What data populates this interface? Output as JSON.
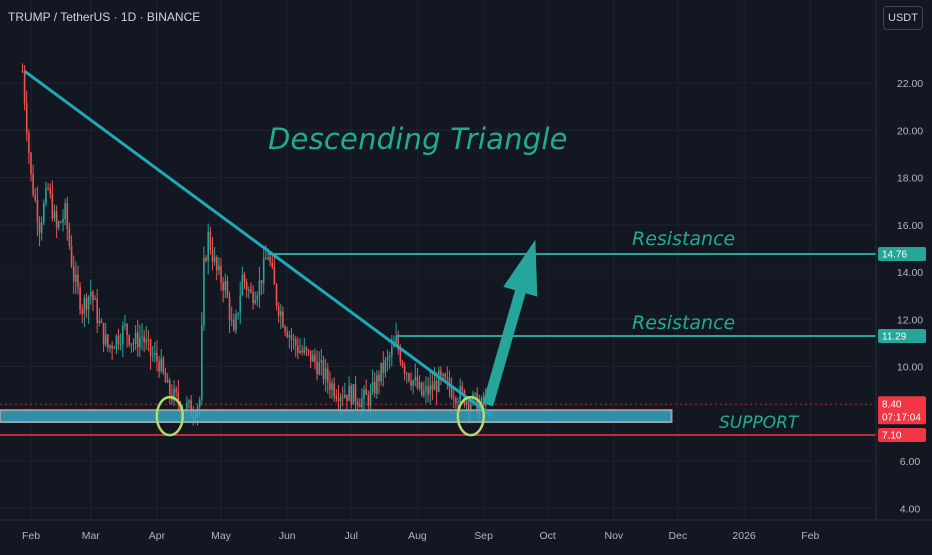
{
  "header": {
    "symbol_line": "TRUMP / TetherUS · 1D · BINANCE",
    "currency_button": "USDT"
  },
  "annotations": {
    "title": "Descending Triangle",
    "resistance_upper": "Resistance",
    "resistance_lower": "Resistance",
    "support": "SUPPORT"
  },
  "price_tags": {
    "res_upper": "14.76",
    "res_lower": "11.29",
    "last_price": "8.40",
    "countdown": "07:17:04",
    "support": "7.10"
  },
  "colors": {
    "background": "#131722",
    "up_candle": "#26a69a",
    "down_candle": "#ef5350",
    "trendline": "#1fa8b8",
    "resistance": "#26a69a",
    "support_band": "#35a3c0",
    "support_line": "#f23645",
    "annotation_text": "#22ab94"
  },
  "chart_data": {
    "type": "candlestick",
    "pair": "TRUMP/USDT",
    "timeframe": "1D",
    "exchange": "BINANCE",
    "y_ticks": [
      "22.00",
      "20.00",
      "18.00",
      "16.00",
      "14.00",
      "12.00",
      "10.00",
      "6.00",
      "4.00"
    ],
    "x_ticks": [
      "Feb",
      "Mar",
      "Apr",
      "May",
      "Jun",
      "Jul",
      "Aug",
      "Sep",
      "Oct",
      "Nov",
      "Dec",
      "2026",
      "Feb"
    ],
    "ylim": [
      3.5,
      24.5
    ],
    "close_path": [
      [
        "2025-01-28",
        22.5
      ],
      [
        "2025-02-01",
        18.0
      ],
      [
        "2025-02-05",
        16.0
      ],
      [
        "2025-02-09",
        17.5
      ],
      [
        "2025-02-13",
        15.8
      ],
      [
        "2025-02-17",
        16.5
      ],
      [
        "2025-02-21",
        13.8
      ],
      [
        "2025-02-25",
        12.5
      ],
      [
        "2025-03-01",
        13.2
      ],
      [
        "2025-03-05",
        11.8
      ],
      [
        "2025-03-09",
        10.8
      ],
      [
        "2025-03-13",
        11.2
      ],
      [
        "2025-03-17",
        11.6
      ],
      [
        "2025-03-21",
        11.0
      ],
      [
        "2025-03-25",
        11.3
      ],
      [
        "2025-03-29",
        10.5
      ],
      [
        "2025-04-02",
        10.2
      ],
      [
        "2025-04-06",
        9.0
      ],
      [
        "2025-04-10",
        8.6
      ],
      [
        "2025-04-14",
        8.3
      ],
      [
        "2025-04-18",
        8.1
      ],
      [
        "2025-04-21",
        8.6
      ],
      [
        "2025-04-23",
        14.2
      ],
      [
        "2025-04-25",
        15.5
      ],
      [
        "2025-04-29",
        14.0
      ],
      [
        "2025-05-03",
        13.4
      ],
      [
        "2025-05-07",
        11.2
      ],
      [
        "2025-05-11",
        13.8
      ],
      [
        "2025-05-15",
        13.0
      ],
      [
        "2025-05-19",
        13.5
      ],
      [
        "2025-05-23",
        14.8
      ],
      [
        "2025-05-27",
        12.8
      ],
      [
        "2025-05-31",
        11.8
      ],
      [
        "2025-06-04",
        11.0
      ],
      [
        "2025-06-08",
        10.6
      ],
      [
        "2025-06-12",
        10.4
      ],
      [
        "2025-06-16",
        10.0
      ],
      [
        "2025-06-20",
        9.4
      ],
      [
        "2025-06-24",
        9.0
      ],
      [
        "2025-06-28",
        8.9
      ],
      [
        "2025-07-02",
        8.8
      ],
      [
        "2025-07-06",
        8.6
      ],
      [
        "2025-07-10",
        8.7
      ],
      [
        "2025-07-14",
        9.6
      ],
      [
        "2025-07-18",
        10.2
      ],
      [
        "2025-07-22",
        11.0
      ],
      [
        "2025-07-26",
        10.0
      ],
      [
        "2025-07-30",
        9.4
      ],
      [
        "2025-08-03",
        8.8
      ],
      [
        "2025-08-07",
        9.0
      ],
      [
        "2025-08-11",
        9.4
      ],
      [
        "2025-08-15",
        9.2
      ],
      [
        "2025-08-19",
        8.9
      ],
      [
        "2025-08-23",
        8.7
      ],
      [
        "2025-08-27",
        8.5
      ],
      [
        "2025-08-31",
        8.3
      ],
      [
        "2025-09-03",
        8.4
      ]
    ],
    "trendline": {
      "from": [
        "2025-01-29",
        22.5
      ],
      "to": [
        "2025-09-05",
        7.9
      ]
    },
    "resistance_levels": [
      14.76,
      11.29
    ],
    "support_zone": [
      7.65,
      8.15
    ],
    "support_line": 7.1,
    "last_price": 8.4,
    "projection_arrow": {
      "from": [
        "2025-09-03",
        8.4
      ],
      "to": [
        "2025-09-25",
        15.3
      ]
    },
    "circled_lows": [
      "2025-04-07",
      "2025-08-26"
    ]
  }
}
